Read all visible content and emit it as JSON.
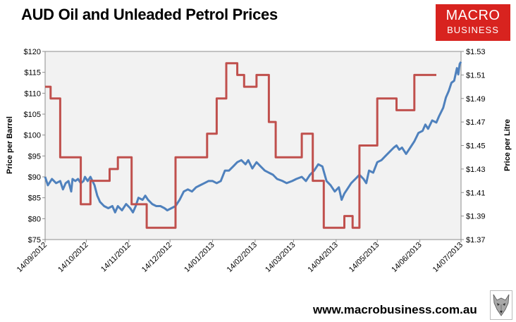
{
  "chart_data": {
    "type": "line",
    "title": "AUD Oil and Unleaded Petrol Prices",
    "ylabel_left": "Price per Barrel",
    "ylabel_right": "Price per Litre",
    "y_left_ticks": [
      "$75",
      "$80",
      "$85",
      "$90",
      "$95",
      "$100",
      "$105",
      "$110",
      "$115",
      "$120"
    ],
    "y_right_ticks": [
      "$1.37",
      "$1.39",
      "$1.41",
      "$1.43",
      "$1.45",
      "$1.47",
      "$1.49",
      "$1.51",
      "$1.53"
    ],
    "y_left_range": [
      75,
      120
    ],
    "y_right_range": [
      1.37,
      1.53
    ],
    "x_tick_labels": [
      "14/09/2012",
      "14/10/2012",
      "14/11/2012",
      "14/12/2012",
      "14/01/2013",
      "14/02/2013",
      "14/03/2013",
      "14/04/2013",
      "14/05/2013",
      "14/06/2013",
      "14/07/2013"
    ],
    "x_range": [
      "2012-09-14",
      "2013-07-14"
    ],
    "grid": false,
    "series": [
      {
        "name": "",
        "axis": "left",
        "color": "#4f81bd",
        "points": [
          [
            "2012-09-14",
            90.0
          ],
          [
            "2012-09-16",
            88.0
          ],
          [
            "2012-09-19",
            89.5
          ],
          [
            "2012-09-22",
            88.5
          ],
          [
            "2012-09-25",
            89.0
          ],
          [
            "2012-09-27",
            87.0
          ],
          [
            "2012-09-29",
            88.5
          ],
          [
            "2012-10-01",
            89.0
          ],
          [
            "2012-10-03",
            86.5
          ],
          [
            "2012-10-04",
            89.5
          ],
          [
            "2012-10-06",
            89.0
          ],
          [
            "2012-10-08",
            89.5
          ],
          [
            "2012-10-10",
            88.5
          ],
          [
            "2012-10-12",
            89.0
          ],
          [
            "2012-10-13",
            90.0
          ],
          [
            "2012-10-15",
            89.0
          ],
          [
            "2012-10-17",
            90.0
          ],
          [
            "2012-10-20",
            88.0
          ],
          [
            "2012-10-22",
            85.5
          ],
          [
            "2012-10-24",
            84.0
          ],
          [
            "2012-10-27",
            83.0
          ],
          [
            "2012-10-30",
            82.5
          ],
          [
            "2012-11-02",
            83.0
          ],
          [
            "2012-11-04",
            81.5
          ],
          [
            "2012-11-06",
            83.0
          ],
          [
            "2012-11-09",
            82.0
          ],
          [
            "2012-11-12",
            83.5
          ],
          [
            "2012-11-15",
            82.5
          ],
          [
            "2012-11-17",
            81.5
          ],
          [
            "2012-11-19",
            83.0
          ],
          [
            "2012-11-21",
            85.0
          ],
          [
            "2012-11-24",
            84.5
          ],
          [
            "2012-11-26",
            85.5
          ],
          [
            "2012-11-28",
            84.5
          ],
          [
            "2012-12-01",
            83.5
          ],
          [
            "2012-12-04",
            83.0
          ],
          [
            "2012-12-07",
            83.0
          ],
          [
            "2012-12-10",
            82.5
          ],
          [
            "2012-12-12",
            82.0
          ],
          [
            "2012-12-15",
            82.5
          ],
          [
            "2012-12-18",
            83.0
          ],
          [
            "2012-12-21",
            84.5
          ],
          [
            "2012-12-24",
            86.5
          ],
          [
            "2012-12-27",
            87.0
          ],
          [
            "2012-12-30",
            86.5
          ],
          [
            "2013-01-02",
            87.5
          ],
          [
            "2013-01-05",
            88.0
          ],
          [
            "2013-01-08",
            88.5
          ],
          [
            "2013-01-11",
            89.0
          ],
          [
            "2013-01-14",
            89.0
          ],
          [
            "2013-01-17",
            88.5
          ],
          [
            "2013-01-20",
            89.0
          ],
          [
            "2013-01-23",
            91.5
          ],
          [
            "2013-01-26",
            91.5
          ],
          [
            "2013-01-29",
            92.5
          ],
          [
            "2013-02-01",
            93.5
          ],
          [
            "2013-02-04",
            94.0
          ],
          [
            "2013-02-07",
            93.0
          ],
          [
            "2013-02-09",
            94.0
          ],
          [
            "2013-02-12",
            92.0
          ],
          [
            "2013-02-15",
            93.5
          ],
          [
            "2013-02-18",
            92.5
          ],
          [
            "2013-02-21",
            91.5
          ],
          [
            "2013-02-24",
            91.0
          ],
          [
            "2013-02-27",
            90.5
          ],
          [
            "2013-03-02",
            89.5
          ],
          [
            "2013-03-06",
            89.0
          ],
          [
            "2013-03-09",
            88.5
          ],
          [
            "2013-03-13",
            89.0
          ],
          [
            "2013-03-16",
            89.5
          ],
          [
            "2013-03-20",
            90.0
          ],
          [
            "2013-03-23",
            89.0
          ],
          [
            "2013-03-26",
            90.5
          ],
          [
            "2013-03-29",
            91.5
          ],
          [
            "2013-04-01",
            93.0
          ],
          [
            "2013-04-04",
            92.5
          ],
          [
            "2013-04-07",
            89.0
          ],
          [
            "2013-04-10",
            88.0
          ],
          [
            "2013-04-13",
            86.5
          ],
          [
            "2013-04-16",
            87.5
          ],
          [
            "2013-04-18",
            84.5
          ],
          [
            "2013-04-20",
            86.0
          ],
          [
            "2013-04-22",
            87.0
          ],
          [
            "2013-04-25",
            88.5
          ],
          [
            "2013-04-28",
            89.5
          ],
          [
            "2013-05-01",
            90.5
          ],
          [
            "2013-05-04",
            89.5
          ],
          [
            "2013-05-06",
            88.5
          ],
          [
            "2013-05-08",
            91.5
          ],
          [
            "2013-05-11",
            91.0
          ],
          [
            "2013-05-14",
            93.5
          ],
          [
            "2013-05-17",
            94.0
          ],
          [
            "2013-05-20",
            95.0
          ],
          [
            "2013-05-23",
            96.0
          ],
          [
            "2013-05-26",
            97.0
          ],
          [
            "2013-05-28",
            97.5
          ],
          [
            "2013-05-30",
            96.5
          ],
          [
            "2013-06-01",
            97.0
          ],
          [
            "2013-06-04",
            95.5
          ],
          [
            "2013-06-07",
            97.0
          ],
          [
            "2013-06-10",
            98.5
          ],
          [
            "2013-06-13",
            100.5
          ],
          [
            "2013-06-16",
            101.0
          ],
          [
            "2013-06-18",
            102.5
          ],
          [
            "2013-06-20",
            101.5
          ],
          [
            "2013-06-23",
            103.5
          ],
          [
            "2013-06-26",
            103.0
          ],
          [
            "2013-06-28",
            104.5
          ],
          [
            "2013-07-01",
            106.5
          ],
          [
            "2013-07-03",
            109.0
          ],
          [
            "2013-07-05",
            110.5
          ],
          [
            "2013-07-07",
            112.5
          ],
          [
            "2013-07-09",
            113.0
          ],
          [
            "2013-07-11",
            116.0
          ],
          [
            "2013-07-12",
            114.5
          ],
          [
            "2013-07-13",
            117.0
          ],
          [
            "2013-07-14",
            117.5
          ]
        ]
      },
      {
        "name": "",
        "axis": "right",
        "color": "#c0504d",
        "points": [
          [
            "2012-09-14",
            1.5
          ],
          [
            "2012-09-18",
            1.5
          ],
          [
            "2012-09-18",
            1.49
          ],
          [
            "2012-09-25",
            1.49
          ],
          [
            "2012-09-25",
            1.44
          ],
          [
            "2012-10-10",
            1.44
          ],
          [
            "2012-10-10",
            1.4
          ],
          [
            "2012-10-17",
            1.4
          ],
          [
            "2012-10-17",
            1.42
          ],
          [
            "2012-10-31",
            1.42
          ],
          [
            "2012-10-31",
            1.43
          ],
          [
            "2012-11-06",
            1.43
          ],
          [
            "2012-11-06",
            1.44
          ],
          [
            "2012-11-16",
            1.44
          ],
          [
            "2012-11-16",
            1.4
          ],
          [
            "2012-11-27",
            1.4
          ],
          [
            "2012-11-27",
            1.38
          ],
          [
            "2012-12-18",
            1.38
          ],
          [
            "2012-12-18",
            1.44
          ],
          [
            "2013-01-10",
            1.44
          ],
          [
            "2013-01-10",
            1.46
          ],
          [
            "2013-01-17",
            1.46
          ],
          [
            "2013-01-17",
            1.49
          ],
          [
            "2013-01-24",
            1.49
          ],
          [
            "2013-01-24",
            1.52
          ],
          [
            "2013-02-01",
            1.52
          ],
          [
            "2013-02-01",
            1.51
          ],
          [
            "2013-02-06",
            1.51
          ],
          [
            "2013-02-06",
            1.5
          ],
          [
            "2013-02-15",
            1.5
          ],
          [
            "2013-02-15",
            1.51
          ],
          [
            "2013-02-24",
            1.51
          ],
          [
            "2013-02-24",
            1.47
          ],
          [
            "2013-03-01",
            1.47
          ],
          [
            "2013-03-01",
            1.44
          ],
          [
            "2013-03-20",
            1.44
          ],
          [
            "2013-03-20",
            1.46
          ],
          [
            "2013-03-28",
            1.46
          ],
          [
            "2013-03-28",
            1.42
          ],
          [
            "2013-04-05",
            1.42
          ],
          [
            "2013-04-05",
            1.38
          ],
          [
            "2013-04-20",
            1.38
          ],
          [
            "2013-04-20",
            1.39
          ],
          [
            "2013-04-26",
            1.39
          ],
          [
            "2013-04-26",
            1.38
          ],
          [
            "2013-05-01",
            1.38
          ],
          [
            "2013-05-01",
            1.45
          ],
          [
            "2013-05-14",
            1.45
          ],
          [
            "2013-05-14",
            1.49
          ],
          [
            "2013-05-28",
            1.49
          ],
          [
            "2013-05-28",
            1.48
          ],
          [
            "2013-06-10",
            1.48
          ],
          [
            "2013-06-10",
            1.51
          ],
          [
            "2013-06-26",
            1.51
          ]
        ]
      }
    ]
  },
  "logo": {
    "line1": "MACRO",
    "line2": "BUSINESS"
  },
  "website": "www.macrobusiness.com.au"
}
